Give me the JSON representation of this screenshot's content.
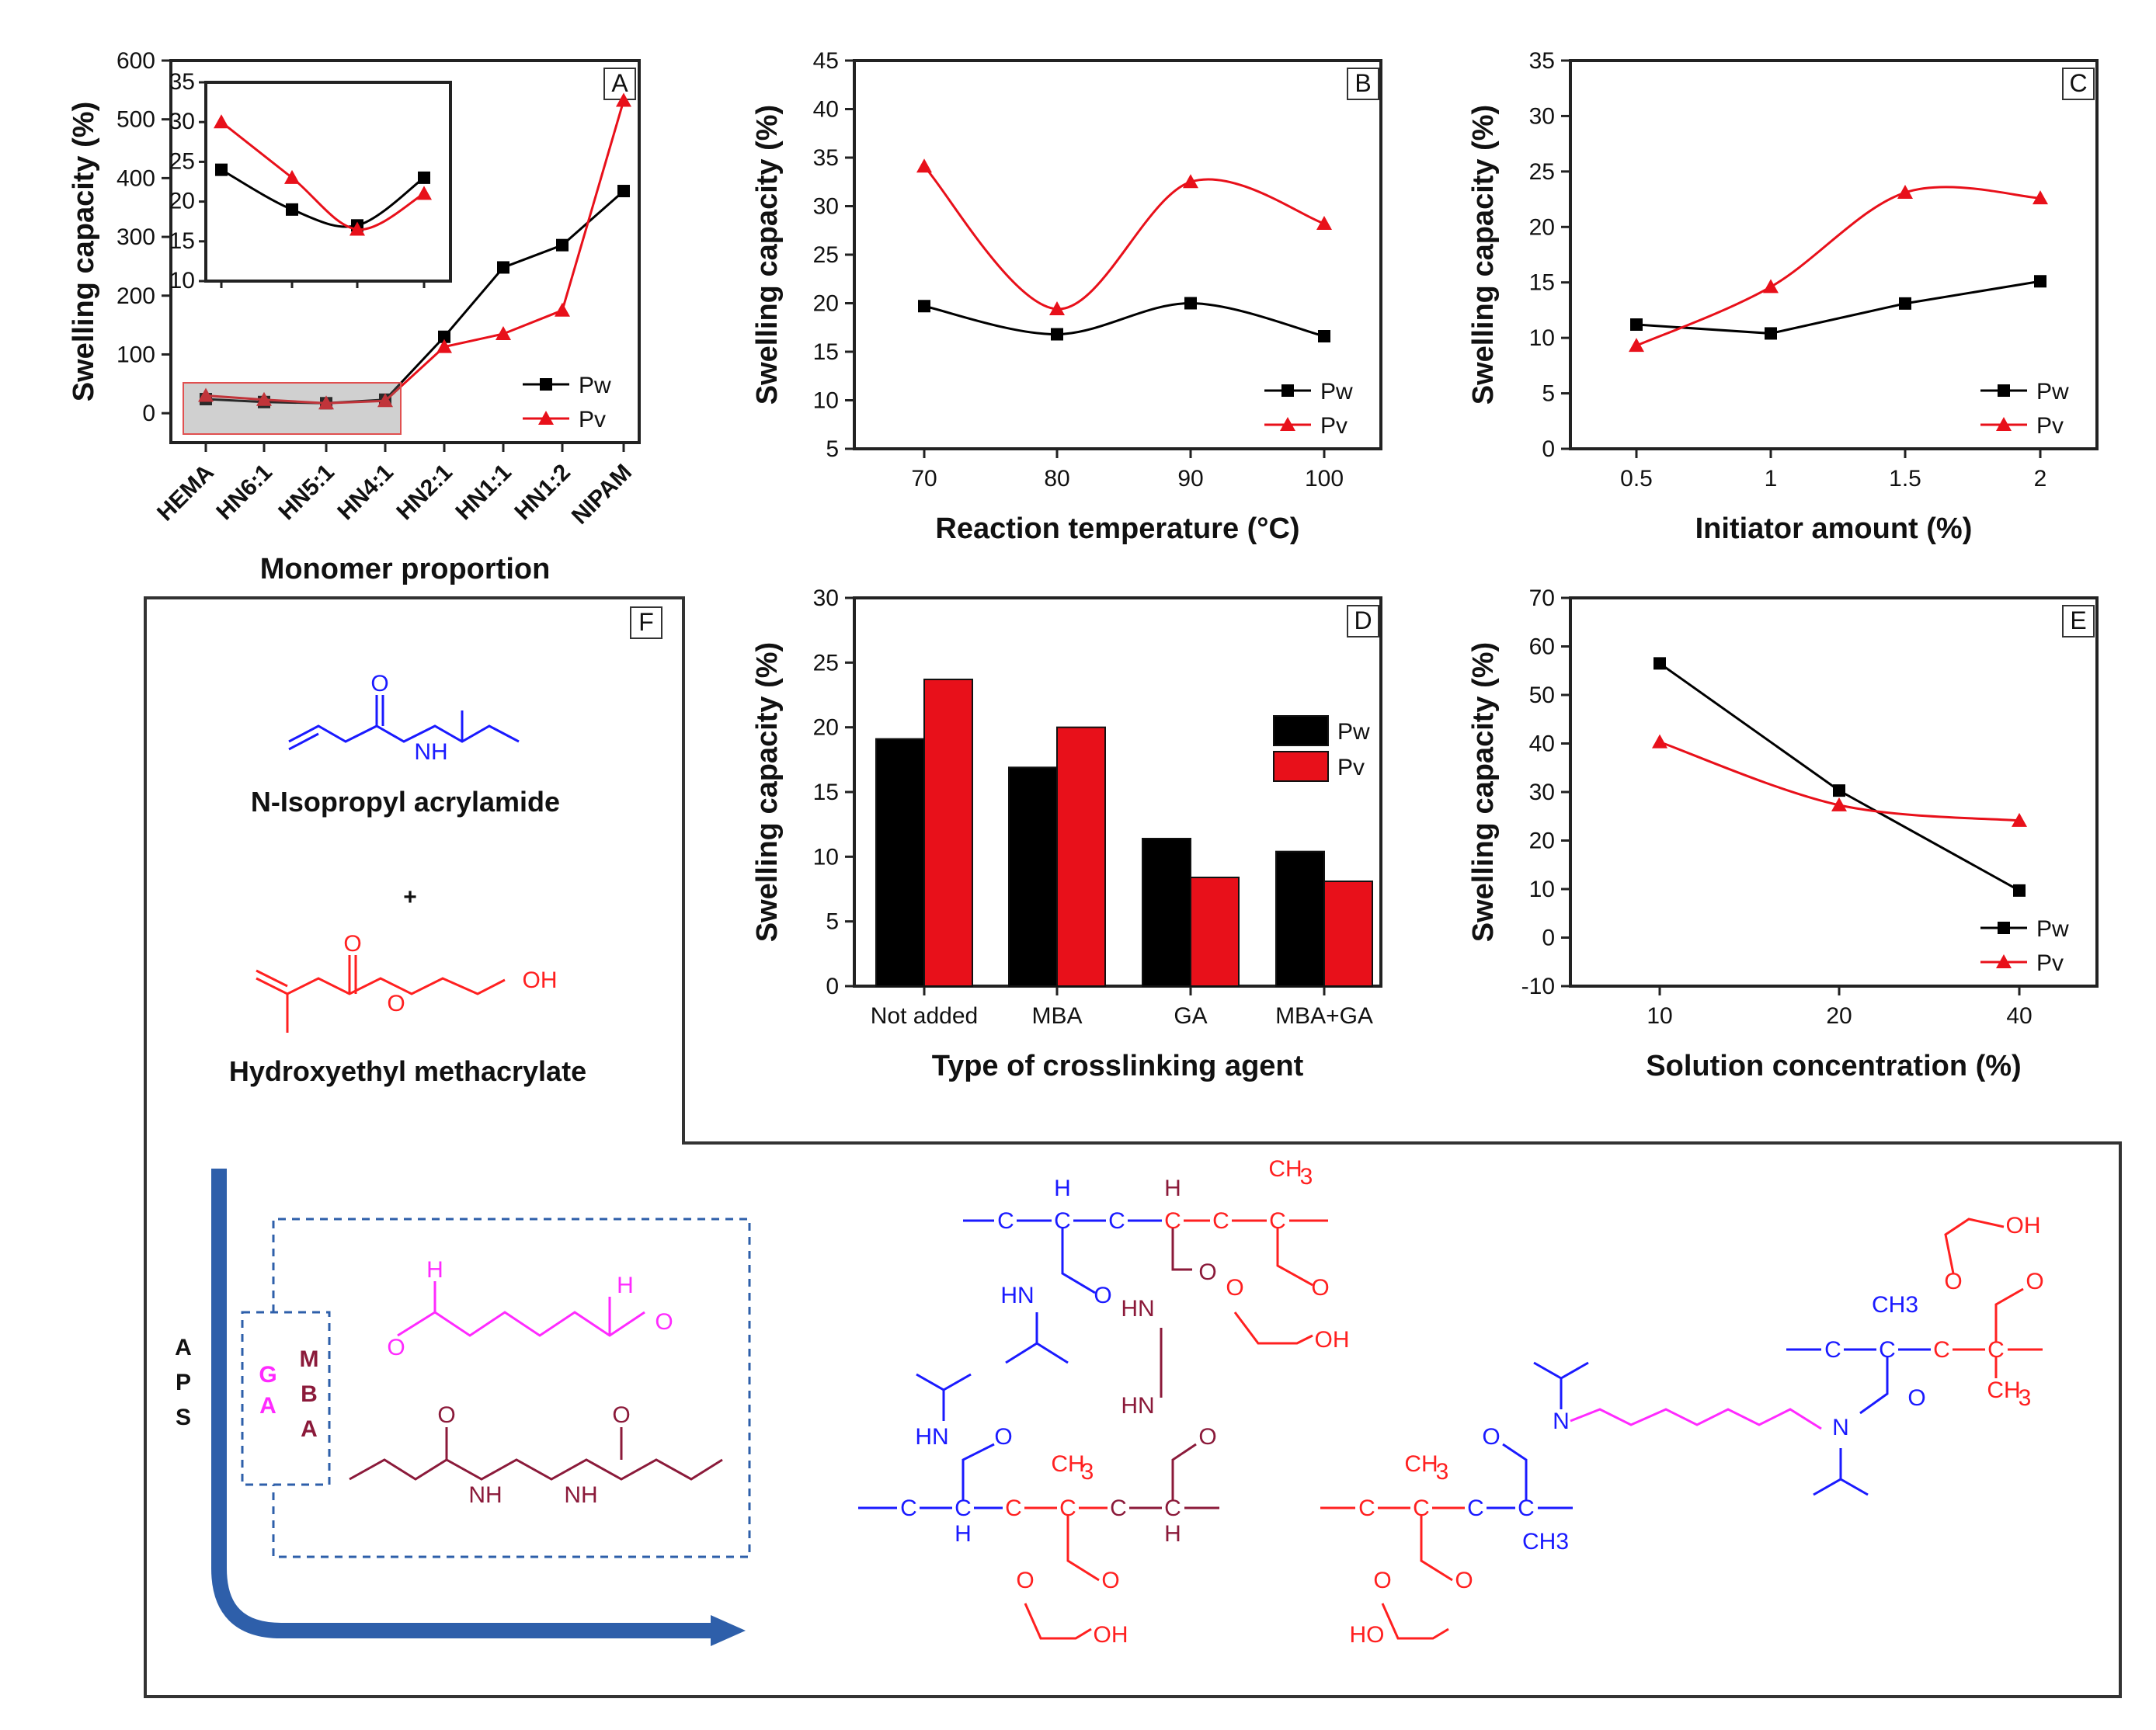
{
  "colors": {
    "pw": "#000000",
    "pv": "#e8101a",
    "blue": "#1a1aff",
    "red": "#ff2020",
    "magenta": "#ff2aff",
    "maroon": "#8b1a3a",
    "arrow": "#2e5faa"
  },
  "chart_data": [
    {
      "panel": "A",
      "type": "line",
      "ylabel": "Swelling capacity (%)",
      "xlabel": "Monomer proportion",
      "categories": [
        "HEMA",
        "HN6:1",
        "HN5:1",
        "HN4:1",
        "HN2:1",
        "HN1:1",
        "HN1:2",
        "NIPAM"
      ],
      "ylim": [
        -50,
        600
      ],
      "yticks": [
        0,
        100,
        200,
        300,
        400,
        500,
        600
      ],
      "series": [
        {
          "name": "Pw",
          "values": [
            24,
            19,
            17,
            23,
            130,
            248,
            286,
            378
          ]
        },
        {
          "name": "Pv",
          "values": [
            30,
            23,
            17,
            21,
            113,
            135,
            175,
            532
          ]
        }
      ],
      "legend": "bottom-right",
      "inset": {
        "categories": [
          "HEMA",
          "HN6:1",
          "HN5:1",
          "HN4:1"
        ],
        "ylim": [
          10,
          35
        ],
        "yticks": [
          10,
          15,
          20,
          25,
          30,
          35
        ],
        "series": [
          {
            "name": "Pw",
            "values": [
              24,
              19,
              17,
              23
            ]
          },
          {
            "name": "Pv",
            "values": [
              30,
              23,
              16.5,
              21
            ]
          }
        ]
      }
    },
    {
      "panel": "B",
      "type": "line",
      "ylabel": "Swelling capacity (%)",
      "xlabel": "Reaction temperature (°C)",
      "categories": [
        "70",
        "80",
        "90",
        "100"
      ],
      "ylim": [
        5,
        45
      ],
      "yticks": [
        5,
        10,
        15,
        20,
        25,
        30,
        35,
        40,
        45
      ],
      "series": [
        {
          "name": "Pw",
          "values": [
            19.7,
            16.8,
            20.0,
            16.6
          ]
        },
        {
          "name": "Pv",
          "values": [
            34.1,
            19.4,
            32.5,
            28.2
          ]
        }
      ],
      "legend": "bottom-right"
    },
    {
      "panel": "C",
      "type": "line",
      "ylabel": "Swelling capacity (%)",
      "xlabel": "Initiator amount (%)",
      "categories": [
        "0.5",
        "1",
        "1.5",
        "2"
      ],
      "ylim": [
        0,
        35
      ],
      "yticks": [
        0,
        5,
        10,
        15,
        20,
        25,
        30,
        35
      ],
      "series": [
        {
          "name": "Pw",
          "values": [
            11.2,
            10.4,
            13.1,
            15.1
          ]
        },
        {
          "name": "Pv",
          "values": [
            9.3,
            14.6,
            23.1,
            22.6
          ]
        }
      ],
      "legend": "bottom-right"
    },
    {
      "panel": "D",
      "type": "bar",
      "ylabel": "Swelling capacity (%)",
      "xlabel": "Type of crosslinking agent",
      "categories": [
        "Not added",
        "MBA",
        "GA",
        "MBA+GA"
      ],
      "ylim": [
        0,
        30
      ],
      "yticks": [
        0,
        5,
        10,
        15,
        20,
        25,
        30
      ],
      "series": [
        {
          "name": "Pw",
          "values": [
            19.1,
            16.9,
            11.4,
            10.4
          ]
        },
        {
          "name": "Pv",
          "values": [
            23.7,
            20.0,
            8.4,
            8.1
          ]
        }
      ],
      "legend": "top-right"
    },
    {
      "panel": "E",
      "type": "line",
      "ylabel": "Swelling capacity (%)",
      "xlabel": "Solution concentration (%)",
      "categories": [
        "10",
        "20",
        "40"
      ],
      "ylim": [
        -10,
        70
      ],
      "yticks": [
        -10,
        0,
        10,
        20,
        30,
        40,
        50,
        60,
        70
      ],
      "series": [
        {
          "name": "Pw",
          "values": [
            56.5,
            30.3,
            9.7
          ]
        },
        {
          "name": "Pv",
          "values": [
            40.3,
            27.3,
            24.1
          ]
        }
      ],
      "legend": "bottom-right"
    }
  ],
  "scheme": {
    "panel": "F",
    "nipam_label": "N-Isopropyl acrylamide",
    "hema_label": "Hydroxyethyl methacrylate",
    "plus": "+",
    "aps": [
      "A",
      "P",
      "S"
    ],
    "ga": [
      "G",
      "A"
    ],
    "mba": [
      "M",
      "B",
      "A"
    ],
    "atoms": {
      "O": "O",
      "NH": "NH",
      "HN": "HN",
      "OH": "OH",
      "HO": "HO",
      "H": "H",
      "C": "C",
      "N": "N",
      "CH3_sub": "CH",
      "sub3": "3",
      "CH3": "CH3",
      "bond": "—"
    }
  }
}
